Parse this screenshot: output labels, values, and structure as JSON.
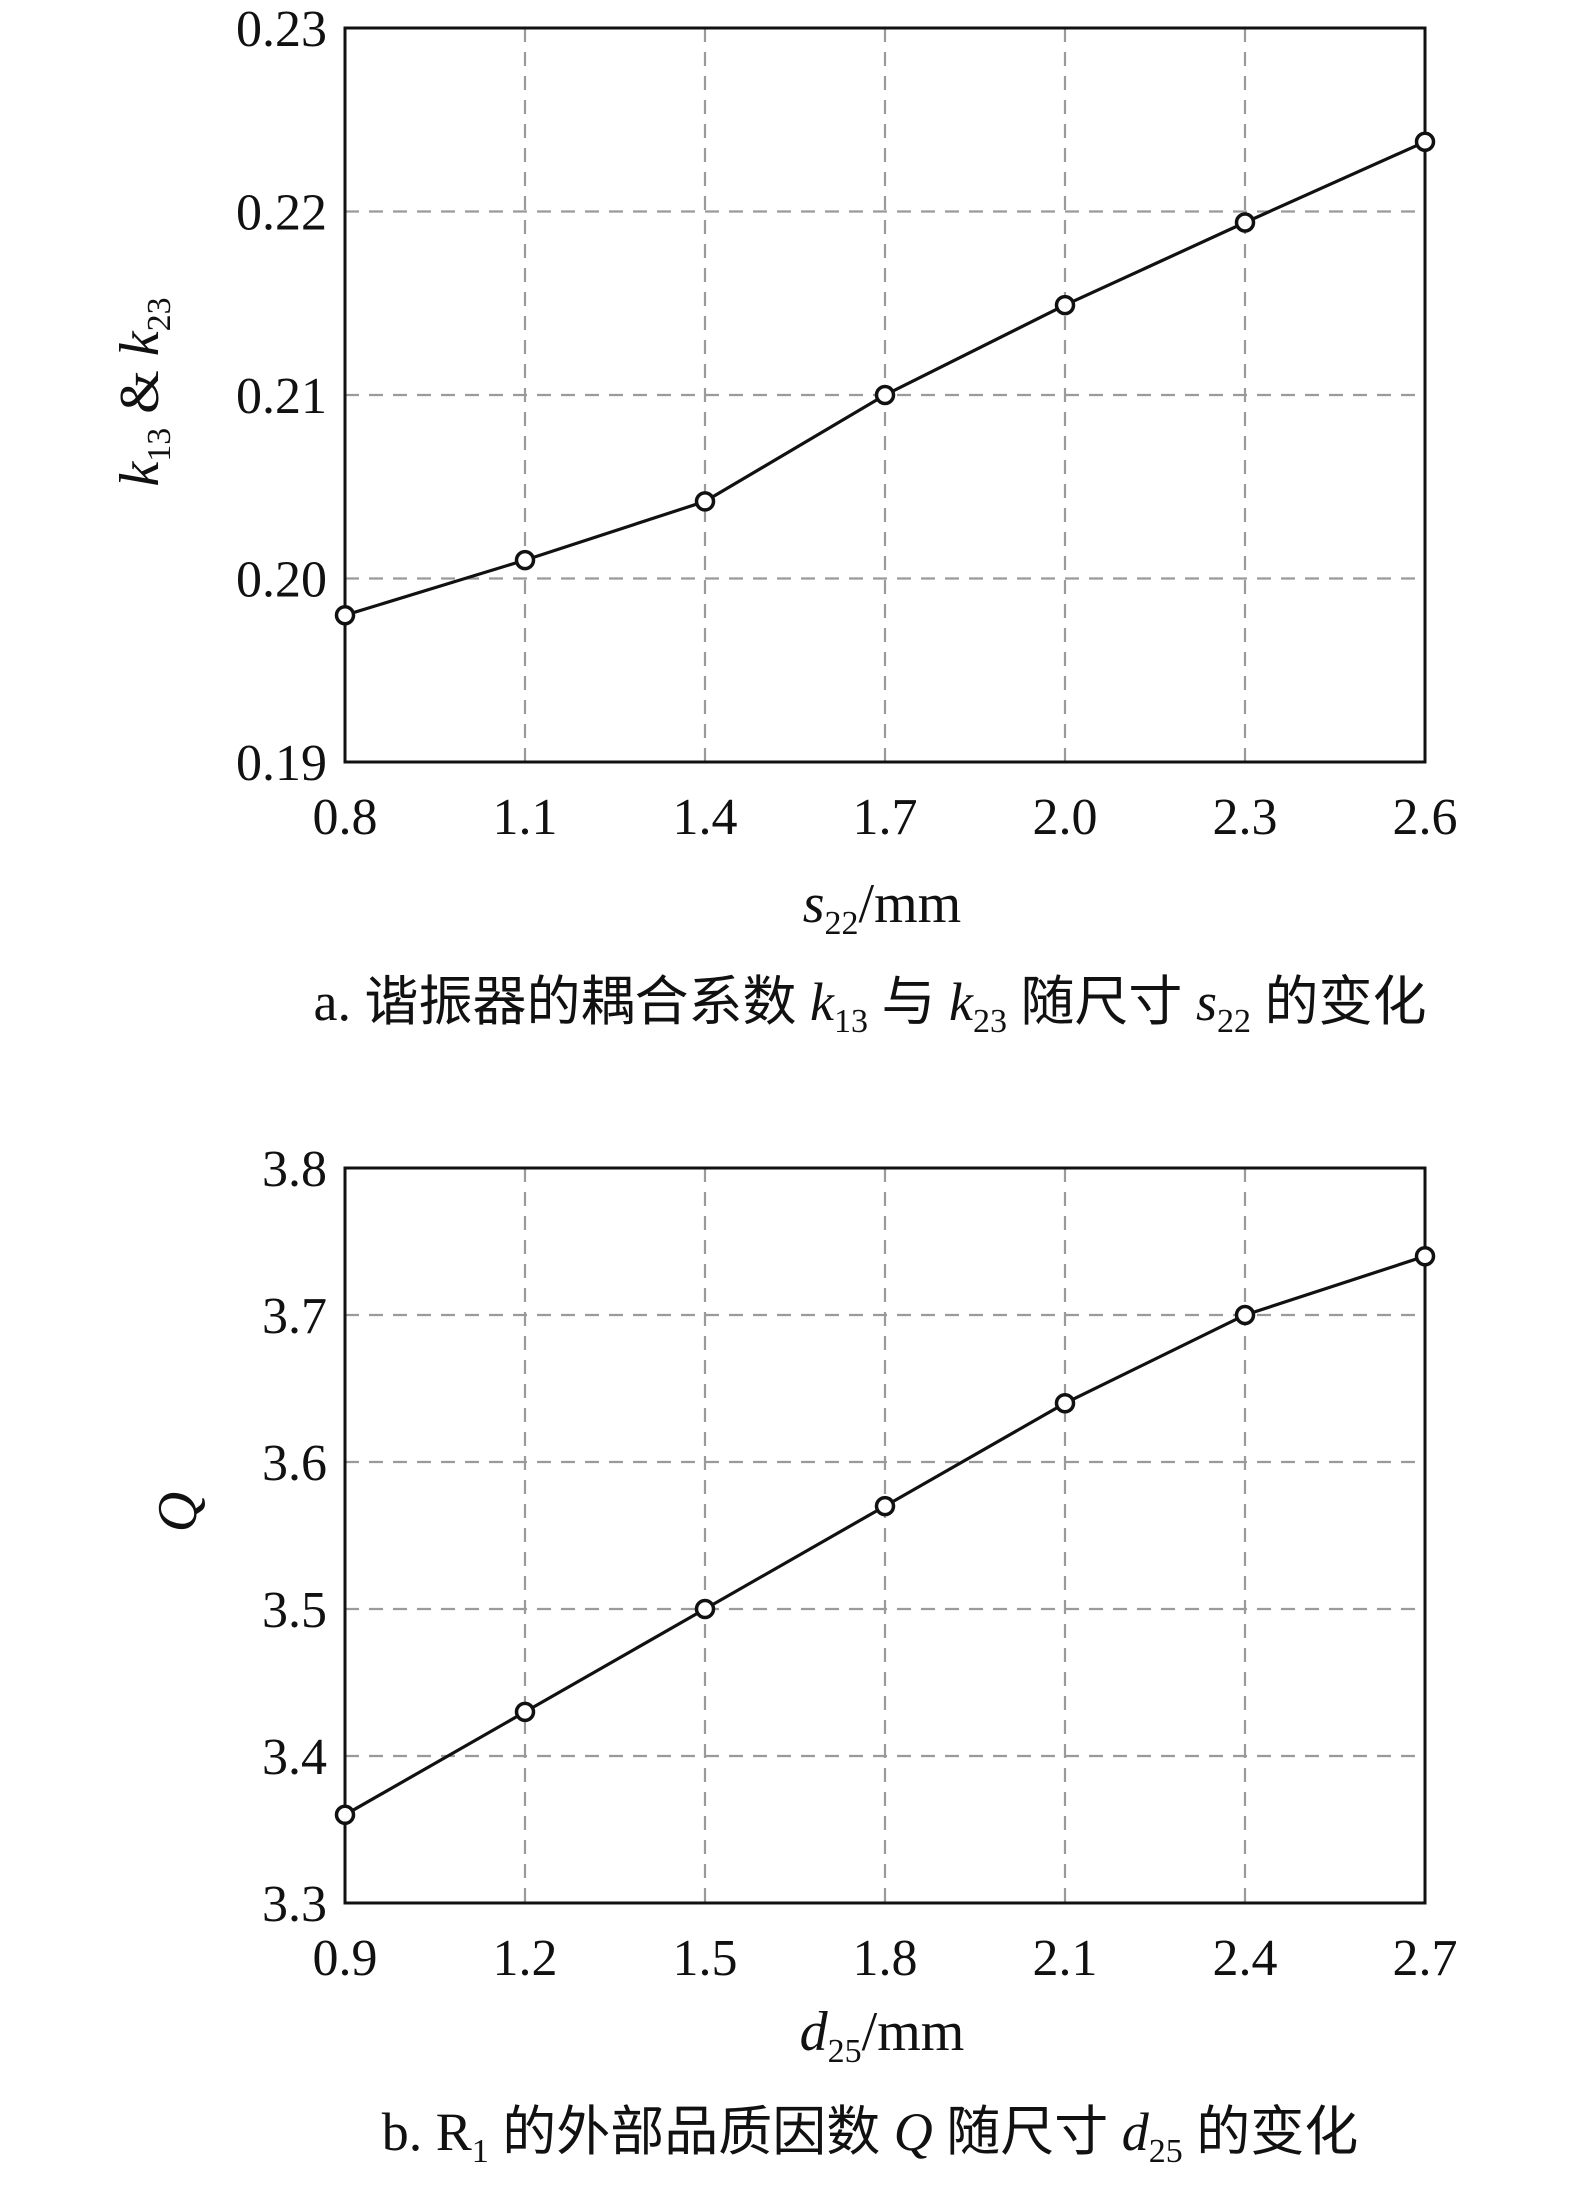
{
  "chart_data": [
    {
      "type": "line",
      "x": [
        "0.8",
        "1.1",
        "1.4",
        "1.7",
        "2.0",
        "2.3",
        "2.6"
      ],
      "series": [
        {
          "values": [
            0.198,
            0.201,
            0.2042,
            0.21,
            0.2149,
            0.2194,
            0.2238
          ]
        }
      ],
      "xlim": [
        0.8,
        2.6
      ],
      "ylim": [
        0.19,
        0.23
      ],
      "yticks": [
        "0.19",
        "0.20",
        "0.21",
        "0.22",
        "0.23"
      ],
      "ylabel": {
        "k": "k",
        "k_sub": "13",
        "amp": " & ",
        "k2": "k",
        "k2_sub": "23"
      },
      "xlabel": {
        "var": "s",
        "sub": "22",
        "unit": "/mm"
      },
      "caption": {
        "prefix": "a. 谐振器的耦合系数 ",
        "v1": "k",
        "v1_sub": "13",
        "mid1": " 与 ",
        "v2": "k",
        "v2_sub": "23",
        "mid2": " 随尺寸 ",
        "v3": "s",
        "v3_sub": "22",
        "suffix": " 的变化"
      },
      "grid": true,
      "marker": "circle"
    },
    {
      "type": "line",
      "x": [
        "0.9",
        "1.2",
        "1.5",
        "1.8",
        "2.1",
        "2.4",
        "2.7"
      ],
      "series": [
        {
          "values": [
            3.36,
            3.43,
            3.5,
            3.57,
            3.64,
            3.7,
            3.74
          ]
        }
      ],
      "xlim": [
        0.9,
        2.7
      ],
      "ylim": [
        3.3,
        3.8
      ],
      "yticks": [
        "3.3",
        "3.4",
        "3.5",
        "3.6",
        "3.7",
        "3.8"
      ],
      "ylabel": {
        "var": "Q"
      },
      "xlabel": {
        "var": "d",
        "sub": "25",
        "unit": "/mm"
      },
      "caption": {
        "prefix": "b. R",
        "r_sub": "1",
        "mid1": " 的外部品质因数 ",
        "v1": "Q",
        "mid2": " 随尺寸 ",
        "v2": "d",
        "v2_sub": "25",
        "suffix": " 的变化"
      },
      "grid": true,
      "marker": "circle"
    }
  ]
}
